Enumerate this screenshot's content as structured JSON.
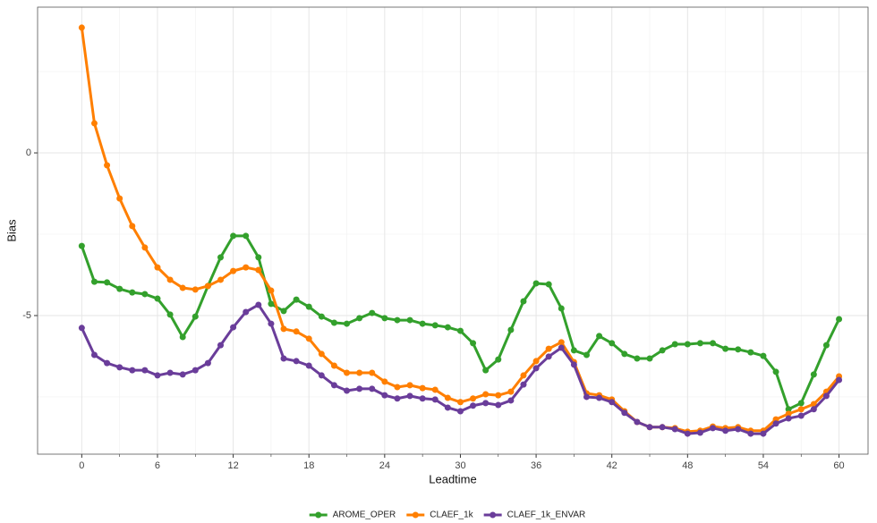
{
  "chart_data": {
    "type": "line",
    "x_label": "Leadtime",
    "y_label": "Bias",
    "x": [
      0,
      1,
      2,
      3,
      4,
      5,
      6,
      7,
      8,
      9,
      10,
      11,
      12,
      13,
      14,
      15,
      16,
      17,
      18,
      19,
      20,
      21,
      22,
      23,
      24,
      25,
      26,
      27,
      28,
      29,
      30,
      31,
      32,
      33,
      34,
      35,
      36,
      37,
      38,
      39,
      40,
      41,
      42,
      43,
      44,
      45,
      46,
      47,
      48,
      49,
      50,
      51,
      52,
      53,
      54,
      55,
      56,
      57,
      58,
      59,
      60
    ],
    "series": [
      {
        "name": "AROME_OPER",
        "color": "#33a02c",
        "values": [
          -2.86,
          -3.96,
          -3.98,
          -4.18,
          -4.29,
          -4.34,
          -4.48,
          -4.97,
          -5.66,
          -5.03,
          -4.09,
          -3.21,
          -2.55,
          -2.55,
          -3.21,
          -4.64,
          -4.86,
          -4.51,
          -4.73,
          -5.03,
          -5.22,
          -5.25,
          -5.08,
          -4.92,
          -5.08,
          -5.14,
          -5.14,
          -5.25,
          -5.3,
          -5.36,
          -5.47,
          -5.85,
          -6.68,
          -6.35,
          -5.44,
          -4.56,
          -4.01,
          -4.04,
          -4.78,
          -6.07,
          -6.21,
          -5.63,
          -5.85,
          -6.18,
          -6.32,
          -6.32,
          -6.07,
          -5.88,
          -5.88,
          -5.85,
          -5.85,
          -6.02,
          -6.04,
          -6.13,
          -6.24,
          -6.73,
          -7.88,
          -7.69,
          -6.81,
          -5.91,
          -5.11
        ]
      },
      {
        "name": "CLAEF_1k",
        "color": "#ff7f00",
        "values": [
          3.85,
          0.91,
          -0.38,
          -1.4,
          -2.25,
          -2.91,
          -3.52,
          -3.9,
          -4.15,
          -4.2,
          -4.09,
          -3.9,
          -3.63,
          -3.52,
          -3.6,
          -4.23,
          -5.41,
          -5.49,
          -5.71,
          -6.18,
          -6.54,
          -6.76,
          -6.76,
          -6.76,
          -7.03,
          -7.2,
          -7.14,
          -7.23,
          -7.28,
          -7.53,
          -7.66,
          -7.55,
          -7.42,
          -7.45,
          -7.34,
          -6.84,
          -6.4,
          -6.02,
          -5.82,
          -6.43,
          -7.39,
          -7.45,
          -7.58,
          -7.94,
          -8.27,
          -8.43,
          -8.43,
          -8.46,
          -8.57,
          -8.54,
          -8.41,
          -8.46,
          -8.43,
          -8.54,
          -8.54,
          -8.19,
          -8.02,
          -7.88,
          -7.72,
          -7.34,
          -6.87
        ]
      },
      {
        "name": "CLAEF_1k_ENVAR",
        "color": "#6a3d9a",
        "values": [
          -5.38,
          -6.21,
          -6.46,
          -6.59,
          -6.68,
          -6.68,
          -6.84,
          -6.76,
          -6.81,
          -6.68,
          -6.46,
          -5.91,
          -5.36,
          -4.89,
          -4.67,
          -5.25,
          -6.32,
          -6.4,
          -6.54,
          -6.84,
          -7.14,
          -7.31,
          -7.25,
          -7.25,
          -7.45,
          -7.55,
          -7.47,
          -7.55,
          -7.58,
          -7.83,
          -7.94,
          -7.77,
          -7.69,
          -7.75,
          -7.61,
          -7.12,
          -6.62,
          -6.26,
          -5.99,
          -6.51,
          -7.5,
          -7.53,
          -7.66,
          -7.99,
          -8.27,
          -8.43,
          -8.43,
          -8.49,
          -8.63,
          -8.6,
          -8.46,
          -8.54,
          -8.49,
          -8.63,
          -8.63,
          -8.32,
          -8.16,
          -8.08,
          -7.88,
          -7.47,
          -6.98
        ]
      }
    ],
    "xlim": [
      -3.5,
      62.3
    ],
    "xticks": [
      0,
      6,
      12,
      18,
      24,
      30,
      36,
      42,
      48,
      54,
      60
    ],
    "xminor": [
      3,
      9,
      15,
      21,
      27,
      33,
      39,
      45,
      51,
      57
    ],
    "ylim": [
      -9.26,
      4.48
    ],
    "yticks": [
      -5,
      0
    ],
    "yminor": [
      -7.5,
      -2.5,
      2.5
    ],
    "grid": true,
    "legend": "bottom"
  }
}
